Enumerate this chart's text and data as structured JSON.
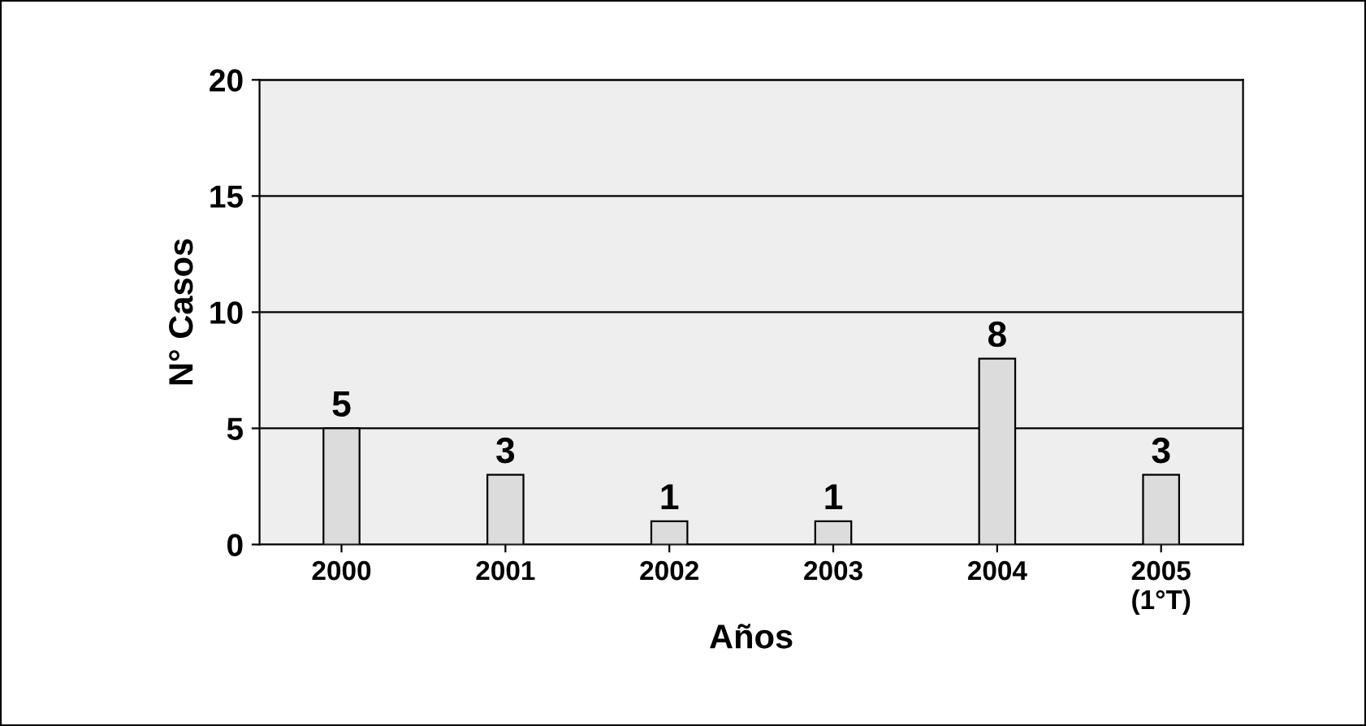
{
  "chart_data": {
    "type": "bar",
    "xlabel": "Años",
    "ylabel": "N° Casos",
    "categories": [
      "2000",
      "2001",
      "2002",
      "2003",
      "2004",
      "2005\n(1°T)"
    ],
    "values": [
      5,
      3,
      1,
      1,
      8,
      3
    ],
    "color": "#dcdcdc",
    "ylim": [
      0,
      20
    ],
    "yticks": [
      0,
      5,
      10,
      15,
      20
    ],
    "grid": "y",
    "data_labels": true
  }
}
